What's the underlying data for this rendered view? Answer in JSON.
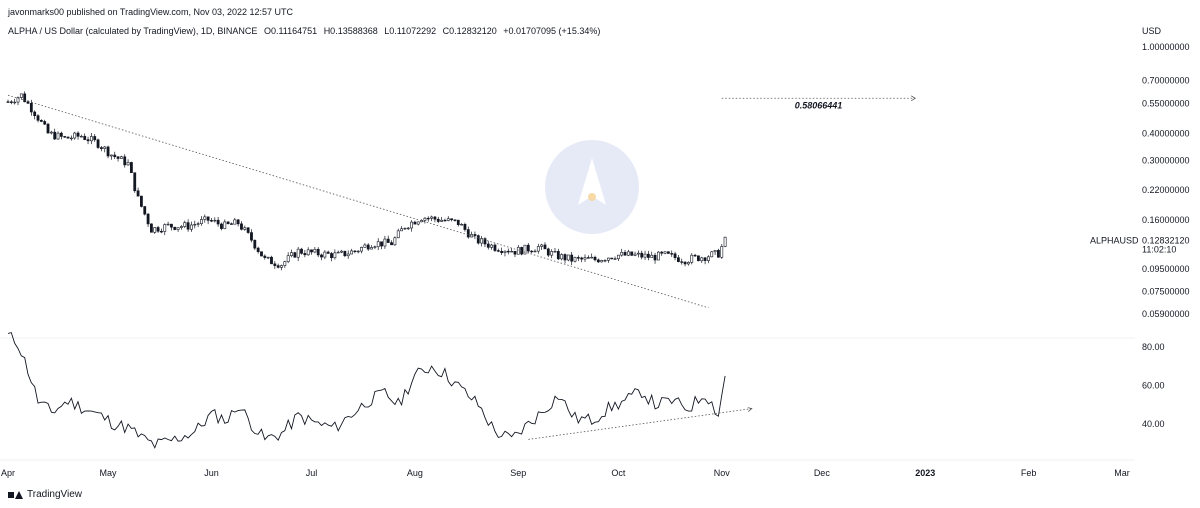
{
  "header": {
    "publisher": "javonmarks00 published on TradingView.com, Nov 03, 2022 12:57 UTC",
    "symbol_desc": "ALPHA / US Dollar (calculated by TradingView), 1D, BINANCE",
    "open": "O0.11164751",
    "high": "H0.13588368",
    "low": "L0.11072292",
    "close": "C0.12832120",
    "change": "+0.01707095 (+15.34%)",
    "currency": "USD"
  },
  "footer": {
    "brand": "TradingView"
  },
  "chart_data": [
    {
      "type": "candlestick",
      "symbol": "ALPHAUSD",
      "last_price_label": "0.12832120",
      "countdown": "11:02:10",
      "target_label": "0.58066441",
      "log_scale": true,
      "ylim": [
        0.055,
        1.0
      ],
      "y_ticks": [
        "1.00000000",
        "0.70000000",
        "0.55000000",
        "0.40000000",
        "0.30000000",
        "0.22000000",
        "0.16000000",
        "0.09500000",
        "0.07500000",
        "0.05900000"
      ],
      "y_tick_values": [
        1.0,
        0.7,
        0.55,
        0.4,
        0.3,
        0.22,
        0.16,
        0.095,
        0.075,
        0.059
      ],
      "x_ticks": [
        {
          "label": "Apr",
          "date": "2022-04-01"
        },
        {
          "label": "May",
          "date": "2022-05-01"
        },
        {
          "label": "Jun",
          "date": "2022-06-01"
        },
        {
          "label": "Jul",
          "date": "2022-07-01"
        },
        {
          "label": "Aug",
          "date": "2022-08-01"
        },
        {
          "label": "Sep",
          "date": "2022-09-01"
        },
        {
          "label": "Oct",
          "date": "2022-10-01"
        },
        {
          "label": "Nov",
          "date": "2022-11-01"
        },
        {
          "label": "Dec",
          "date": "2022-12-01"
        },
        {
          "label": "2023",
          "date": "2023-01-01",
          "bold": true
        },
        {
          "label": "Feb",
          "date": "2023-02-01"
        },
        {
          "label": "Mar",
          "date": "2023-03-01"
        }
      ],
      "x_range": [
        "2022-04-01",
        "2023-03-01"
      ],
      "price_path": [
        [
          "2022-04-01",
          0.56
        ],
        [
          "2022-04-05",
          0.6
        ],
        [
          "2022-04-09",
          0.5
        ],
        [
          "2022-04-13",
          0.4
        ],
        [
          "2022-04-18",
          0.38
        ],
        [
          "2022-04-23",
          0.39
        ],
        [
          "2022-04-28",
          0.36
        ],
        [
          "2022-05-02",
          0.32
        ],
        [
          "2022-05-07",
          0.29
        ],
        [
          "2022-05-10",
          0.2
        ],
        [
          "2022-05-14",
          0.145
        ],
        [
          "2022-05-19",
          0.15
        ],
        [
          "2022-05-25",
          0.15
        ],
        [
          "2022-05-31",
          0.16
        ],
        [
          "2022-06-05",
          0.15
        ],
        [
          "2022-06-09",
          0.155
        ],
        [
          "2022-06-13",
          0.13
        ],
        [
          "2022-06-17",
          0.105
        ],
        [
          "2022-06-22",
          0.1
        ],
        [
          "2022-06-27",
          0.115
        ],
        [
          "2022-07-03",
          0.112
        ],
        [
          "2022-07-09",
          0.11
        ],
        [
          "2022-07-14",
          0.115
        ],
        [
          "2022-07-19",
          0.125
        ],
        [
          "2022-07-25",
          0.125
        ],
        [
          "2022-07-29",
          0.15
        ],
        [
          "2022-08-03",
          0.165
        ],
        [
          "2022-08-09",
          0.16
        ],
        [
          "2022-08-14",
          0.155
        ],
        [
          "2022-08-19",
          0.13
        ],
        [
          "2022-08-25",
          0.12
        ],
        [
          "2022-08-31",
          0.115
        ],
        [
          "2022-09-07",
          0.12
        ],
        [
          "2022-09-12",
          0.11
        ],
        [
          "2022-09-17",
          0.105
        ],
        [
          "2022-09-24",
          0.105
        ],
        [
          "2022-09-30",
          0.11
        ],
        [
          "2022-10-06",
          0.11
        ],
        [
          "2022-10-11",
          0.108
        ],
        [
          "2022-10-15",
          0.11
        ],
        [
          "2022-10-21",
          0.105
        ],
        [
          "2022-10-26",
          0.108
        ],
        [
          "2022-10-31",
          0.112
        ],
        [
          "2022-11-02",
          0.1283
        ]
      ],
      "overlays": {
        "downtrend_line": {
          "from": [
            "2022-04-01",
            0.6
          ],
          "to": [
            "2022-10-28",
            0.063
          ]
        },
        "target_line": {
          "from": [
            "2022-11-01",
            0.58066441
          ],
          "to": [
            "2022-12-29",
            0.58066441
          ]
        }
      }
    },
    {
      "type": "line",
      "name": "oscillator",
      "ylim": [
        27,
        88
      ],
      "y_ticks": [
        "80.00",
        "60.00",
        "40.00"
      ],
      "y_tick_values": [
        80,
        60,
        40
      ],
      "values": [
        [
          "2022-04-01",
          86
        ],
        [
          "2022-04-04",
          82
        ],
        [
          "2022-04-07",
          68
        ],
        [
          "2022-04-10",
          52
        ],
        [
          "2022-04-14",
          46
        ],
        [
          "2022-04-19",
          52
        ],
        [
          "2022-04-24",
          48
        ],
        [
          "2022-04-29",
          44
        ],
        [
          "2022-05-03",
          40
        ],
        [
          "2022-05-07",
          38
        ],
        [
          "2022-05-11",
          33
        ],
        [
          "2022-05-15",
          29
        ],
        [
          "2022-05-21",
          32
        ],
        [
          "2022-05-27",
          36
        ],
        [
          "2022-06-01",
          45
        ],
        [
          "2022-06-06",
          42
        ],
        [
          "2022-06-09",
          50
        ],
        [
          "2022-06-13",
          40
        ],
        [
          "2022-06-17",
          32
        ],
        [
          "2022-06-22",
          35
        ],
        [
          "2022-06-27",
          44
        ],
        [
          "2022-07-03",
          40
        ],
        [
          "2022-07-08",
          38
        ],
        [
          "2022-07-13",
          45
        ],
        [
          "2022-07-18",
          52
        ],
        [
          "2022-07-23",
          56
        ],
        [
          "2022-07-27",
          50
        ],
        [
          "2022-08-01",
          65
        ],
        [
          "2022-08-06",
          70
        ],
        [
          "2022-08-10",
          66
        ],
        [
          "2022-08-15",
          58
        ],
        [
          "2022-08-20",
          50
        ],
        [
          "2022-08-25",
          36
        ],
        [
          "2022-08-30",
          32
        ],
        [
          "2022-09-04",
          40
        ],
        [
          "2022-09-08",
          46
        ],
        [
          "2022-09-13",
          55
        ],
        [
          "2022-09-18",
          43
        ],
        [
          "2022-09-23",
          42
        ],
        [
          "2022-09-28",
          48
        ],
        [
          "2022-10-03",
          52
        ],
        [
          "2022-10-08",
          57
        ],
        [
          "2022-10-12",
          50
        ],
        [
          "2022-10-17",
          52
        ],
        [
          "2022-10-22",
          48
        ],
        [
          "2022-10-27",
          56
        ],
        [
          "2022-10-31",
          45
        ],
        [
          "2022-11-02",
          65
        ]
      ],
      "overlays": {
        "uptrend_line": {
          "from": [
            "2022-09-04",
            32
          ],
          "to": [
            "2022-11-10",
            48
          ]
        }
      }
    }
  ]
}
